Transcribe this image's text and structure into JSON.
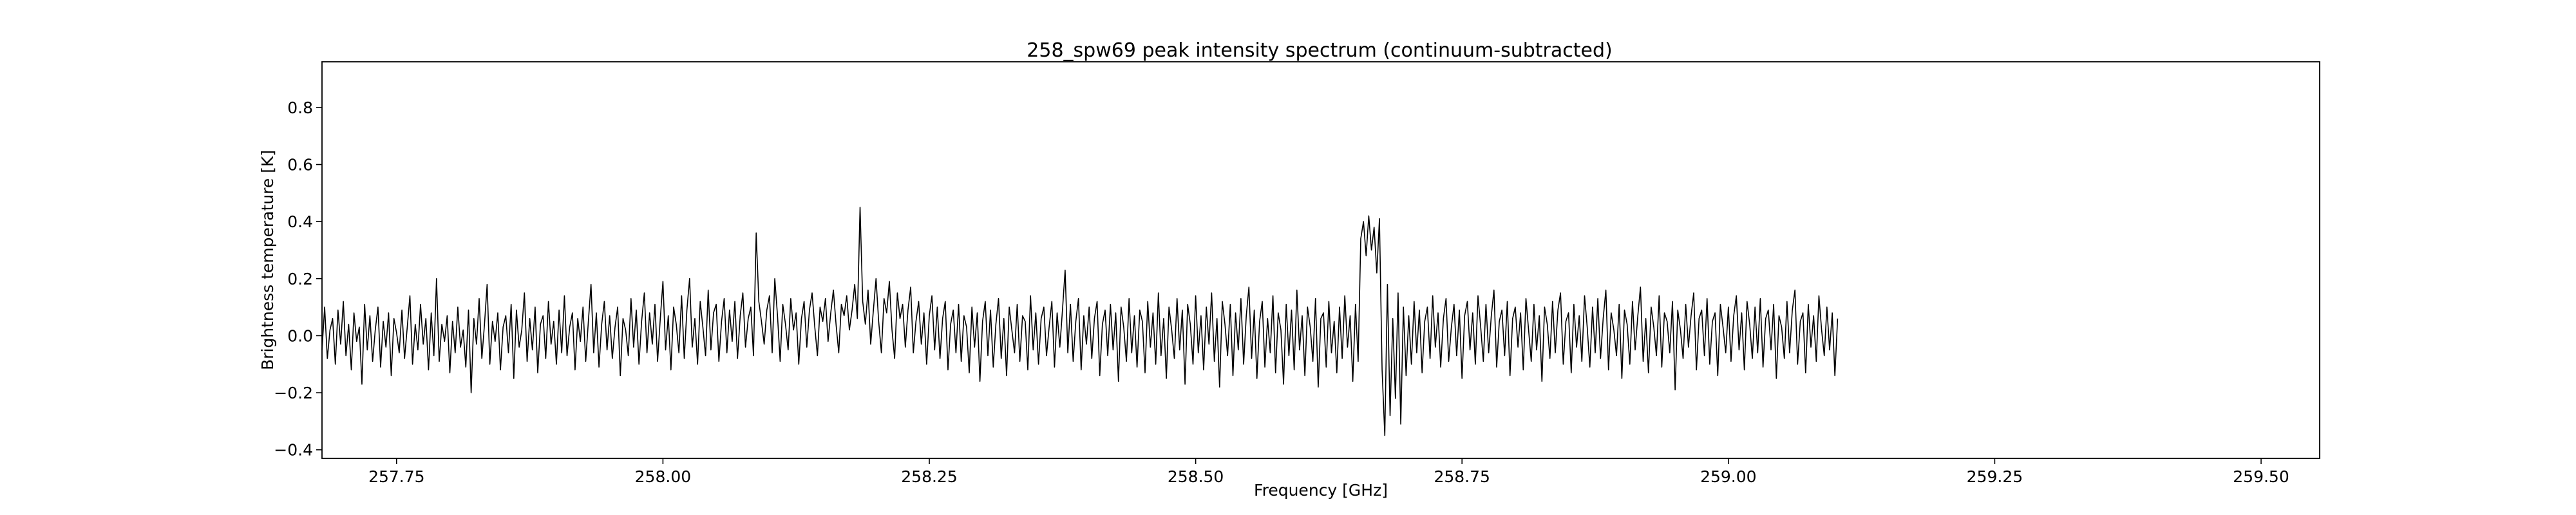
{
  "chart_data": {
    "type": "line",
    "title": "258_spw69 peak intensity spectrum (continuum-subtracted)",
    "xlabel": "Frequency [GHz]",
    "ylabel": "Brightness temperature [K]",
    "xlim": [
      257.68,
      259.555
    ],
    "ylim": [
      -0.43,
      0.96
    ],
    "xticks": [
      257.75,
      258.0,
      258.25,
      258.5,
      258.75,
      259.0,
      259.25,
      259.5
    ],
    "xtick_labels": [
      "257.75",
      "258.00",
      "258.25",
      "258.50",
      "258.75",
      "259.00",
      "259.25",
      "259.50"
    ],
    "yticks": [
      -0.4,
      -0.2,
      0.0,
      0.2,
      0.4,
      0.6,
      0.8
    ],
    "ytick_labels": [
      "−0.4",
      "−0.2",
      "0.0",
      "0.2",
      "0.4",
      "0.6",
      "0.8"
    ],
    "grid": false,
    "line_color": "#000000",
    "series": [
      {
        "x_start": 257.68,
        "x_step": 0.0025,
        "y": [
          -0.05,
          0.1,
          -0.08,
          0.02,
          0.06,
          -0.1,
          0.09,
          -0.03,
          0.12,
          -0.07,
          0.04,
          -0.12,
          0.08,
          -0.02,
          0.03,
          -0.17,
          0.11,
          -0.05,
          0.07,
          -0.09,
          0.02,
          0.1,
          -0.11,
          0.05,
          -0.04,
          0.08,
          -0.14,
          0.06,
          0.01,
          -0.06,
          0.09,
          -0.08,
          0.03,
          0.14,
          -0.1,
          0.04,
          -0.05,
          0.11,
          -0.03,
          0.06,
          -0.12,
          0.08,
          -0.07,
          0.2,
          -0.09,
          0.04,
          -0.02,
          0.07,
          -0.13,
          0.05,
          -0.06,
          0.1,
          -0.04,
          0.02,
          -0.11,
          0.09,
          -0.2,
          0.06,
          -0.03,
          0.13,
          -0.08,
          0.04,
          0.18,
          -0.1,
          0.05,
          -0.02,
          0.08,
          -0.12,
          0.03,
          0.07,
          -0.06,
          0.11,
          -0.15,
          0.09,
          -0.04,
          0.02,
          0.15,
          -0.09,
          0.06,
          -0.05,
          0.1,
          -0.13,
          0.04,
          0.07,
          -0.08,
          0.12,
          -0.03,
          0.05,
          -0.1,
          0.09,
          -0.06,
          0.14,
          -0.07,
          0.03,
          0.08,
          -0.12,
          0.06,
          -0.02,
          0.1,
          -0.09,
          0.05,
          0.18,
          -0.06,
          0.08,
          -0.11,
          0.04,
          0.12,
          -0.05,
          0.07,
          -0.08,
          0.03,
          0.1,
          -0.14,
          0.06,
          0.02,
          -0.07,
          0.13,
          -0.04,
          0.09,
          -0.1,
          0.05,
          0.15,
          -0.06,
          0.08,
          -0.03,
          0.11,
          -0.09,
          0.06,
          0.19,
          -0.05,
          0.07,
          -0.12,
          0.1,
          0.04,
          -0.06,
          0.14,
          -0.08,
          0.09,
          0.2,
          -0.04,
          0.06,
          -0.1,
          0.12,
          0.03,
          -0.07,
          0.16,
          -0.05,
          0.08,
          0.11,
          -0.09,
          0.05,
          0.13,
          -0.06,
          0.09,
          -0.02,
          0.12,
          -0.08,
          0.07,
          0.15,
          -0.04,
          0.06,
          0.1,
          -0.07,
          0.36,
          0.12,
          0.05,
          -0.03,
          0.09,
          0.14,
          -0.06,
          0.2,
          0.07,
          -0.09,
          0.11,
          0.04,
          -0.05,
          0.13,
          0.02,
          0.08,
          -0.1,
          0.06,
          0.12,
          -0.04,
          0.09,
          0.15,
          0.03,
          -0.07,
          0.1,
          0.05,
          0.13,
          -0.02,
          0.08,
          0.16,
          0.04,
          -0.06,
          0.11,
          0.07,
          0.14,
          0.02,
          0.09,
          0.18,
          0.06,
          0.45,
          0.12,
          0.04,
          0.16,
          -0.03,
          0.09,
          0.2,
          0.05,
          -0.06,
          0.13,
          0.08,
          0.19,
          0.02,
          -0.08,
          0.15,
          0.06,
          0.11,
          -0.04,
          0.09,
          0.17,
          -0.06,
          0.05,
          0.12,
          -0.03,
          0.08,
          -0.1,
          0.07,
          0.14,
          -0.05,
          0.1,
          -0.08,
          0.06,
          0.12,
          -0.12,
          0.04,
          0.09,
          -0.06,
          0.11,
          -0.09,
          0.07,
          0.03,
          -0.13,
          0.1,
          -0.04,
          0.08,
          -0.16,
          0.05,
          0.12,
          -0.07,
          0.09,
          -0.11,
          0.04,
          0.13,
          -0.08,
          0.06,
          -0.14,
          0.1,
          0.02,
          -0.06,
          0.11,
          -0.09,
          0.07,
          0.05,
          -0.12,
          0.14,
          -0.05,
          0.08,
          -0.1,
          0.06,
          0.1,
          -0.07,
          0.03,
          0.12,
          -0.11,
          0.08,
          -0.04,
          0.09,
          0.23,
          -0.06,
          0.11,
          -0.09,
          0.05,
          0.13,
          -0.12,
          0.07,
          -0.03,
          0.1,
          -0.08,
          0.06,
          0.12,
          -0.14,
          0.04,
          0.09,
          -0.07,
          0.11,
          -0.05,
          0.08,
          -0.16,
          0.1,
          0.03,
          -0.09,
          0.13,
          -0.06,
          0.07,
          -0.11,
          0.09,
          0.05,
          -0.13,
          0.12,
          -0.04,
          0.08,
          -0.1,
          0.15,
          -0.07,
          0.06,
          -0.15,
          0.1,
          0.02,
          -0.08,
          0.13,
          -0.05,
          0.09,
          -0.17,
          0.11,
          0.04,
          -0.1,
          0.14,
          -0.06,
          0.07,
          -0.12,
          0.1,
          -0.03,
          0.15,
          -0.09,
          0.06,
          -0.18,
          0.12,
          0.04,
          -0.07,
          0.11,
          -0.14,
          0.08,
          -0.05,
          0.13,
          -0.1,
          0.07,
          0.17,
          -0.08,
          0.09,
          -0.15,
          0.05,
          0.12,
          -0.11,
          0.06,
          -0.06,
          0.14,
          -0.13,
          0.08,
          0.02,
          -0.17,
          0.11,
          -0.07,
          0.09,
          -0.12,
          0.16,
          -0.05,
          0.07,
          -0.14,
          0.1,
          0.03,
          -0.09,
          0.13,
          -0.18,
          0.06,
          0.08,
          -0.11,
          0.12,
          -0.06,
          0.05,
          -0.13,
          0.1,
          -0.08,
          0.14,
          -0.04,
          0.07,
          -0.16,
          0.11,
          -0.09,
          0.34,
          0.4,
          0.28,
          0.42,
          0.3,
          0.38,
          0.22,
          0.41,
          -0.12,
          -0.35,
          0.18,
          -0.28,
          0.06,
          -0.22,
          0.15,
          -0.31,
          0.1,
          -0.14,
          0.07,
          -0.1,
          0.12,
          -0.06,
          0.09,
          -0.13,
          0.05,
          0.1,
          -0.08,
          0.14,
          -0.04,
          0.08,
          -0.11,
          0.06,
          0.13,
          -0.09,
          0.03,
          0.11,
          -0.07,
          0.09,
          -0.15,
          0.07,
          0.12,
          -0.05,
          0.08,
          -0.1,
          0.14,
          0.03,
          -0.09,
          0.11,
          -0.06,
          0.07,
          0.16,
          -0.11,
          0.05,
          0.09,
          -0.07,
          0.12,
          -0.14,
          0.06,
          0.1,
          -0.04,
          0.08,
          -0.12,
          0.13,
          0.02,
          -0.09,
          0.11,
          -0.05,
          0.07,
          -0.16,
          0.1,
          0.04,
          -0.08,
          0.12,
          -0.06,
          0.09,
          0.15,
          -0.1,
          0.05,
          0.08,
          -0.13,
          0.11,
          -0.04,
          0.07,
          -0.09,
          0.14,
          0.03,
          -0.11,
          0.1,
          -0.06,
          0.13,
          -0.08,
          0.06,
          0.16,
          -0.12,
          0.08,
          0.02,
          -0.07,
          0.11,
          -0.15,
          0.09,
          0.04,
          -0.1,
          0.12,
          -0.05,
          0.07,
          0.17,
          -0.09,
          0.06,
          -0.13,
          0.1,
          0.03,
          -0.07,
          0.14,
          -0.11,
          0.08,
          0.05,
          -0.06,
          0.12,
          -0.19,
          0.09,
          0.02,
          -0.08,
          0.11,
          -0.04,
          0.07,
          0.15,
          -0.12,
          0.06,
          0.09,
          -0.07,
          0.13,
          -0.1,
          0.05,
          0.08,
          -0.14,
          0.11,
          0.03,
          -0.06,
          0.1,
          -0.09,
          0.07,
          0.14,
          -0.05,
          0.08,
          -0.12,
          0.12,
          0.04,
          -0.08,
          0.1,
          -0.06,
          0.13,
          -0.11,
          0.06,
          0.09,
          -0.05,
          0.11,
          -0.15,
          0.07,
          0.03,
          -0.08,
          0.12,
          -0.06,
          0.09,
          0.16,
          -0.1,
          0.05,
          0.08,
          -0.13,
          0.11,
          -0.04,
          0.07,
          -0.09,
          0.14,
          0.02,
          -0.07,
          0.1,
          -0.05,
          0.08,
          -0.14,
          0.06
        ]
      }
    ]
  }
}
